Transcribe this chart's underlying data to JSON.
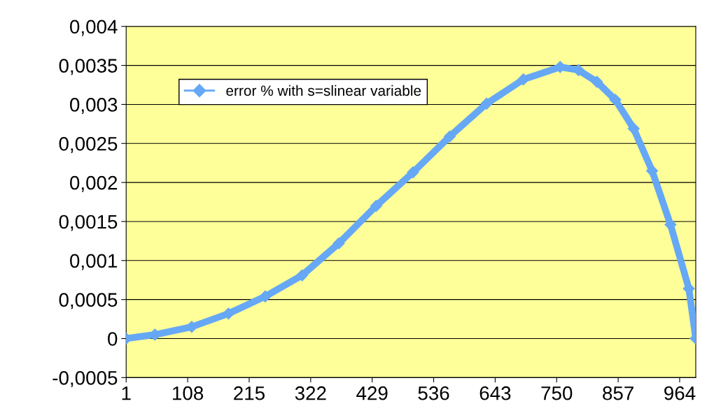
{
  "chart_data": {
    "type": "line",
    "x": [
      1,
      51,
      115,
      179,
      243,
      307,
      371,
      436,
      500,
      564,
      628,
      692,
      756,
      788,
      820,
      852,
      884,
      916,
      948,
      980,
      992
    ],
    "series": [
      {
        "name": "error % with s=slinear variable",
        "color": "#66a8f5",
        "values": [
          0,
          5e-05,
          0.00015,
          0.00032,
          0.00054,
          0.00081,
          0.00122,
          0.0017,
          0.00213,
          0.00259,
          0.00301,
          0.00332,
          0.00348,
          0.00344,
          0.00329,
          0.00306,
          0.00269,
          0.00215,
          0.00146,
          0.00064,
          0
        ]
      }
    ],
    "xlim": [
      1,
      992
    ],
    "xticks": [
      1,
      108,
      215,
      322,
      429,
      536,
      643,
      750,
      857,
      964
    ],
    "ylim": [
      -0.0005,
      0.004
    ],
    "yticks": [
      {
        "value": -0.0005,
        "label": "-0,0005"
      },
      0,
      {
        "value": 0.0005,
        "label": "0,0005"
      },
      {
        "value": 0.001,
        "label": "0,001"
      },
      {
        "value": 0.0015,
        "label": "0,0015"
      },
      {
        "value": 0.002,
        "label": "0,002"
      },
      {
        "value": 0.0025,
        "label": "0,0025"
      },
      {
        "value": 0.003,
        "label": "0,003"
      },
      {
        "value": 0.0035,
        "label": "0,0035"
      },
      {
        "value": 0.004,
        "label": "0,004"
      }
    ],
    "grid": "y",
    "legend": "top left",
    "marker": "diamond",
    "line_style": "solid"
  }
}
